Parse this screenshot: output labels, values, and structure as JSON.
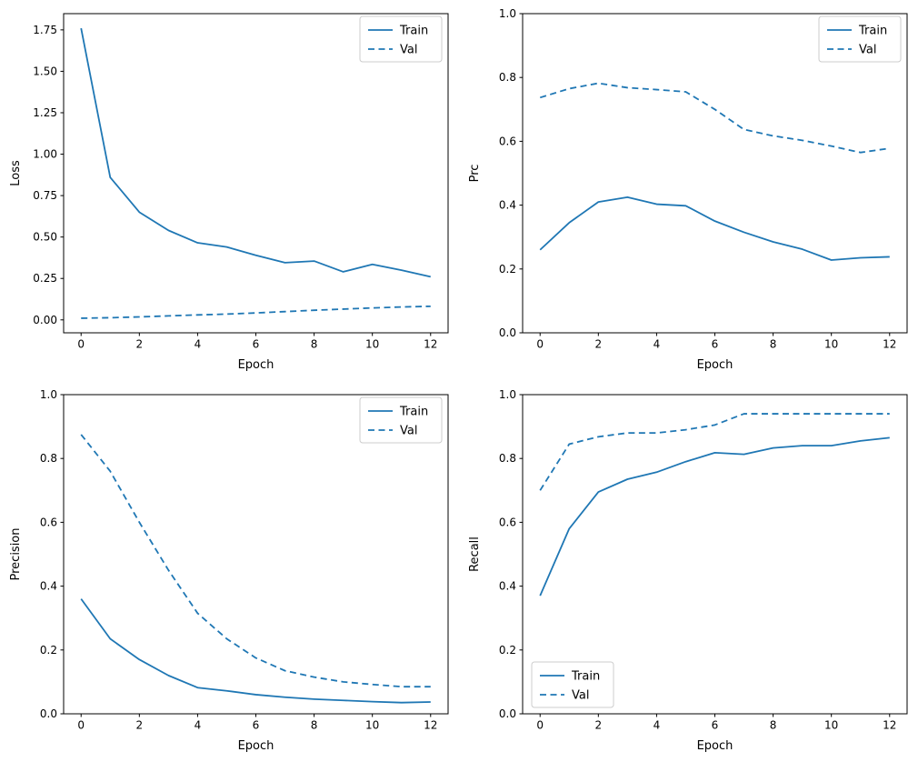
{
  "figure": {
    "background": "#ffffff",
    "line_color": "#1f77b4",
    "spine_color": "#000000",
    "legend_border_color": "#cccccc",
    "subplot_names": [
      "loss",
      "prc",
      "precision",
      "recall"
    ]
  },
  "chart_data": [
    {
      "type": "line",
      "title": "",
      "xlabel": "Epoch",
      "ylabel": "Loss",
      "x": [
        0,
        1,
        2,
        3,
        4,
        5,
        6,
        7,
        8,
        9,
        10,
        11,
        12
      ],
      "series": [
        {
          "name": "Train",
          "style": "solid",
          "values": [
            1.76,
            0.86,
            0.65,
            0.54,
            0.465,
            0.44,
            0.39,
            0.345,
            0.355,
            0.29,
            0.335,
            0.3,
            0.26
          ]
        },
        {
          "name": "Val",
          "style": "dashed",
          "values": [
            0.01,
            0.013,
            0.018,
            0.024,
            0.03,
            0.035,
            0.042,
            0.05,
            0.058,
            0.065,
            0.072,
            0.078,
            0.082
          ]
        }
      ],
      "xlim": [
        -0.6,
        12.6
      ],
      "ylim": [
        -0.078,
        1.848
      ],
      "xticks": {
        "values": [
          0,
          2,
          4,
          6,
          8,
          10,
          12
        ],
        "labels": [
          "0",
          "2",
          "4",
          "6",
          "8",
          "10",
          "12"
        ]
      },
      "yticks": {
        "values": [
          0,
          0.25,
          0.5,
          0.75,
          1.0,
          1.25,
          1.5,
          1.75
        ],
        "labels": [
          "0.00",
          "0.25",
          "0.50",
          "0.75",
          "1.00",
          "1.25",
          "1.50",
          "1.75"
        ]
      },
      "legend_position": "top-right",
      "grid": false
    },
    {
      "type": "line",
      "title": "",
      "xlabel": "Epoch",
      "ylabel": "Prc",
      "x": [
        0,
        1,
        2,
        3,
        4,
        5,
        6,
        7,
        8,
        9,
        10,
        11,
        12
      ],
      "series": [
        {
          "name": "Train",
          "style": "solid",
          "values": [
            0.26,
            0.345,
            0.41,
            0.425,
            0.403,
            0.398,
            0.35,
            0.315,
            0.285,
            0.262,
            0.228,
            0.235,
            0.238
          ]
        },
        {
          "name": "Val",
          "style": "dashed",
          "values": [
            0.737,
            0.765,
            0.782,
            0.768,
            0.762,
            0.755,
            0.7,
            0.637,
            0.617,
            0.603,
            0.585,
            0.565,
            0.578
          ]
        }
      ],
      "xlim": [
        -0.6,
        12.6
      ],
      "ylim": [
        0,
        1
      ],
      "xticks": {
        "values": [
          0,
          2,
          4,
          6,
          8,
          10,
          12
        ],
        "labels": [
          "0",
          "2",
          "4",
          "6",
          "8",
          "10",
          "12"
        ]
      },
      "yticks": {
        "values": [
          0,
          0.2,
          0.4,
          0.6,
          0.8,
          1.0
        ],
        "labels": [
          "0.0",
          "0.2",
          "0.4",
          "0.6",
          "0.8",
          "1.0"
        ]
      },
      "legend_position": "top-right",
      "grid": false
    },
    {
      "type": "line",
      "title": "",
      "xlabel": "Epoch",
      "ylabel": "Precision",
      "x": [
        0,
        1,
        2,
        3,
        4,
        5,
        6,
        7,
        8,
        9,
        10,
        11,
        12
      ],
      "series": [
        {
          "name": "Train",
          "style": "solid",
          "values": [
            0.36,
            0.235,
            0.17,
            0.12,
            0.082,
            0.072,
            0.06,
            0.052,
            0.046,
            0.042,
            0.038,
            0.035,
            0.037
          ]
        },
        {
          "name": "Val",
          "style": "dashed",
          "values": [
            0.875,
            0.76,
            0.6,
            0.45,
            0.315,
            0.235,
            0.175,
            0.135,
            0.115,
            0.1,
            0.092,
            0.085,
            0.085
          ]
        }
      ],
      "xlim": [
        -0.6,
        12.6
      ],
      "ylim": [
        0,
        1
      ],
      "xticks": {
        "values": [
          0,
          2,
          4,
          6,
          8,
          10,
          12
        ],
        "labels": [
          "0",
          "2",
          "4",
          "6",
          "8",
          "10",
          "12"
        ]
      },
      "yticks": {
        "values": [
          0,
          0.2,
          0.4,
          0.6,
          0.8,
          1.0
        ],
        "labels": [
          "0.0",
          "0.2",
          "0.4",
          "0.6",
          "0.8",
          "1.0"
        ]
      },
      "legend_position": "top-right",
      "grid": false
    },
    {
      "type": "line",
      "title": "",
      "xlabel": "Epoch",
      "ylabel": "Recall",
      "x": [
        0,
        1,
        2,
        3,
        4,
        5,
        6,
        7,
        8,
        9,
        10,
        11,
        12
      ],
      "series": [
        {
          "name": "Train",
          "style": "solid",
          "values": [
            0.37,
            0.58,
            0.695,
            0.735,
            0.757,
            0.79,
            0.818,
            0.813,
            0.833,
            0.84,
            0.84,
            0.855,
            0.865
          ]
        },
        {
          "name": "Val",
          "style": "dashed",
          "values": [
            0.7,
            0.845,
            0.868,
            0.88,
            0.88,
            0.89,
            0.905,
            0.94,
            0.94,
            0.94,
            0.94,
            0.94,
            0.94
          ]
        }
      ],
      "xlim": [
        -0.6,
        12.6
      ],
      "ylim": [
        0,
        1
      ],
      "xticks": {
        "values": [
          0,
          2,
          4,
          6,
          8,
          10,
          12
        ],
        "labels": [
          "0",
          "2",
          "4",
          "6",
          "8",
          "10",
          "12"
        ]
      },
      "yticks": {
        "values": [
          0,
          0.2,
          0.4,
          0.6,
          0.8,
          1.0
        ],
        "labels": [
          "0.0",
          "0.2",
          "0.4",
          "0.6",
          "0.8",
          "1.0"
        ]
      },
      "legend_position": "bottom-left",
      "grid": false
    }
  ]
}
